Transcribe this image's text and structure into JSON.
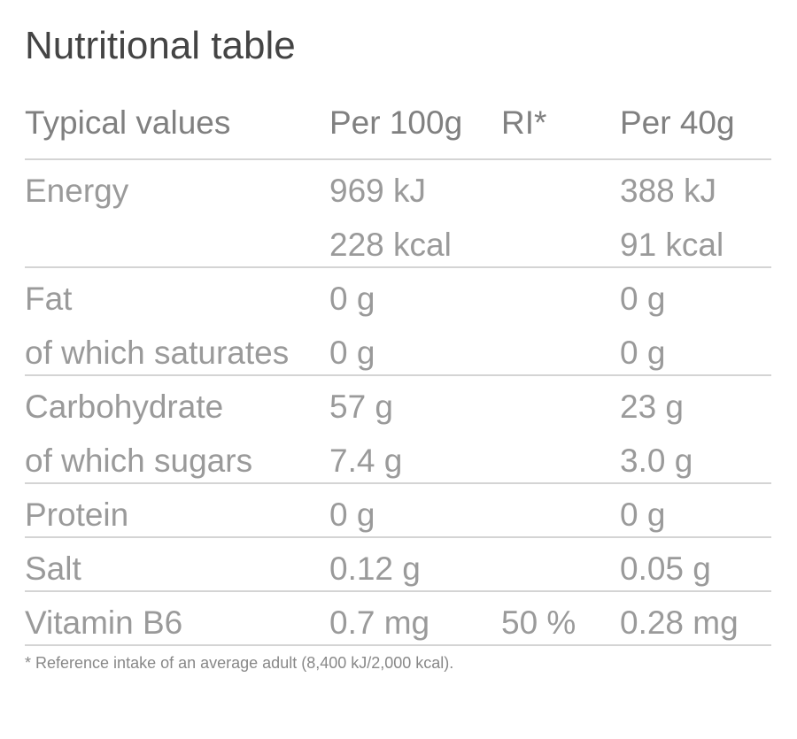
{
  "title": "Nutritional table",
  "table": {
    "header": [
      "Typical values",
      "Per 100g",
      "RI*",
      "Per 40g"
    ],
    "groups": [
      [
        [
          "Energy",
          "969 kJ",
          null,
          "388 kJ"
        ],
        [
          null,
          "228 kcal",
          null,
          "91 kcal"
        ]
      ],
      [
        [
          "Fat",
          "0 g",
          null,
          "0 g"
        ],
        [
          "of which saturates",
          "0 g",
          null,
          "0 g"
        ]
      ],
      [
        [
          "Carbohydrate",
          "57 g",
          null,
          "23 g"
        ],
        [
          "of which sugars",
          "7.4 g",
          null,
          "3.0 g"
        ]
      ],
      [
        [
          "Protein",
          "0 g",
          null,
          "0 g"
        ]
      ],
      [
        [
          "Salt",
          "0.12 g",
          null,
          "0.05 g"
        ]
      ],
      [
        [
          "Vitamin B6",
          "0.7 mg",
          "50 %",
          "0.28 mg"
        ]
      ]
    ]
  },
  "footnote": "* Reference intake of an average adult (8,400 kJ/2,000 kcal)."
}
